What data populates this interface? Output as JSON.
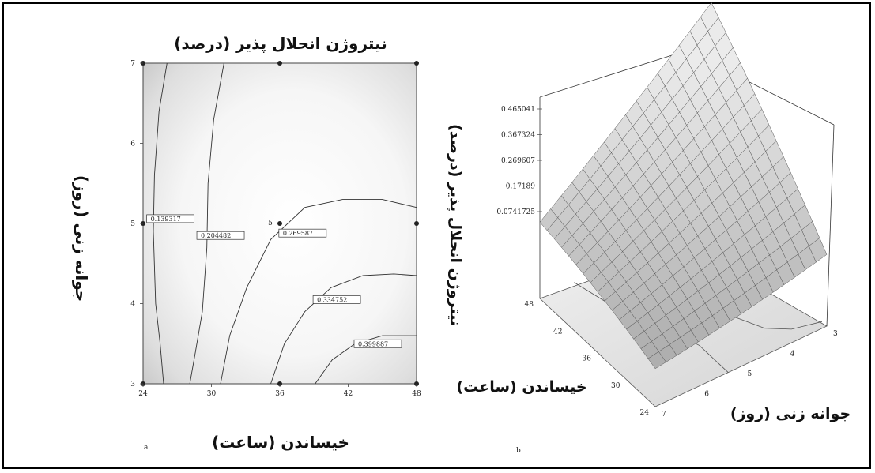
{
  "chart_data": [
    {
      "type": "contour",
      "panel_label": "a",
      "title": "نیتروژن انحلال پذیر (درصد)",
      "xlabel": "خیساندن (ساعت)",
      "ylabel": "جوانه زنی (روز)",
      "xlim": [
        24,
        48
      ],
      "ylim": [
        3,
        7
      ],
      "x_ticks": [
        "24",
        "30",
        "36",
        "42",
        "48"
      ],
      "y_ticks": [
        "3",
        "4",
        "5",
        "6",
        "7"
      ],
      "design_points": [
        {
          "x": 24,
          "y": 3
        },
        {
          "x": 36,
          "y": 3
        },
        {
          "x": 48,
          "y": 3
        },
        {
          "x": 24,
          "y": 5
        },
        {
          "x": 36,
          "y": 5
        },
        {
          "x": 48,
          "y": 5
        },
        {
          "x": 24,
          "y": 7
        },
        {
          "x": 36,
          "y": 7
        },
        {
          "x": 48,
          "y": 7
        }
      ],
      "center_point_label": "5",
      "contours": [
        {
          "level": "0.139317",
          "points": [
            [
              26.1,
              7.0
            ],
            [
              25.4,
              6.4
            ],
            [
              25.0,
              5.6
            ],
            [
              24.9,
              4.9
            ],
            [
              25.1,
              4.0
            ],
            [
              25.5,
              3.5
            ],
            [
              25.8,
              3.0
            ]
          ]
        },
        {
          "level": "0.204482",
          "points": [
            [
              31.1,
              7.0
            ],
            [
              30.2,
              6.3
            ],
            [
              29.7,
              5.5
            ],
            [
              29.6,
              4.7
            ],
            [
              29.2,
              3.9
            ],
            [
              28.6,
              3.4
            ],
            [
              28.1,
              3.0
            ]
          ]
        },
        {
          "level": "0.269587",
          "points": [
            [
              30.8,
              3.0
            ],
            [
              31.6,
              3.6
            ],
            [
              33.1,
              4.2
            ],
            [
              35.2,
              4.8
            ],
            [
              38.2,
              5.2
            ],
            [
              41.5,
              5.3
            ],
            [
              45.0,
              5.3
            ],
            [
              48.0,
              5.2
            ]
          ]
        },
        {
          "level": "0.334752",
          "points": [
            [
              35.2,
              3.0
            ],
            [
              36.4,
              3.5
            ],
            [
              38.2,
              3.9
            ],
            [
              40.5,
              4.2
            ],
            [
              43.3,
              4.35
            ],
            [
              46.0,
              4.37
            ],
            [
              48.0,
              4.35
            ]
          ]
        },
        {
          "level": "0.399887",
          "points": [
            [
              39.1,
              3.0
            ],
            [
              40.6,
              3.3
            ],
            [
              42.6,
              3.5
            ],
            [
              45.0,
              3.6
            ],
            [
              48.0,
              3.6
            ]
          ]
        }
      ],
      "contour_label_positions": [
        {
          "level": "0.139317",
          "x": 26.4,
          "y": 5.06
        },
        {
          "level": "0.204482",
          "x": 30.8,
          "y": 4.85
        },
        {
          "level": "0.269587",
          "x": 38.0,
          "y": 4.88
        },
        {
          "level": "0.334752",
          "x": 41.0,
          "y": 4.05
        },
        {
          "level": "0.399887",
          "x": 44.6,
          "y": 3.5
        }
      ]
    },
    {
      "type": "surface",
      "panel_label": "b",
      "zlabel": "نیتروژن انحلال پذیر (درصد)",
      "xlabel": "جوانه زنی (روز)",
      "ylabel": "خیساندن (ساعت)",
      "x_ticks": [
        "3",
        "4",
        "5",
        "6",
        "7"
      ],
      "y_ticks": [
        "24",
        "30",
        "36",
        "42",
        "48"
      ],
      "z_ticks": [
        "0.0741725",
        "0.17189",
        "0.269607",
        "0.367324",
        "0.465041"
      ],
      "xlim": [
        3,
        7
      ],
      "ylim": [
        24,
        48
      ],
      "zlim": [
        0.0741725,
        0.465041
      ]
    }
  ]
}
